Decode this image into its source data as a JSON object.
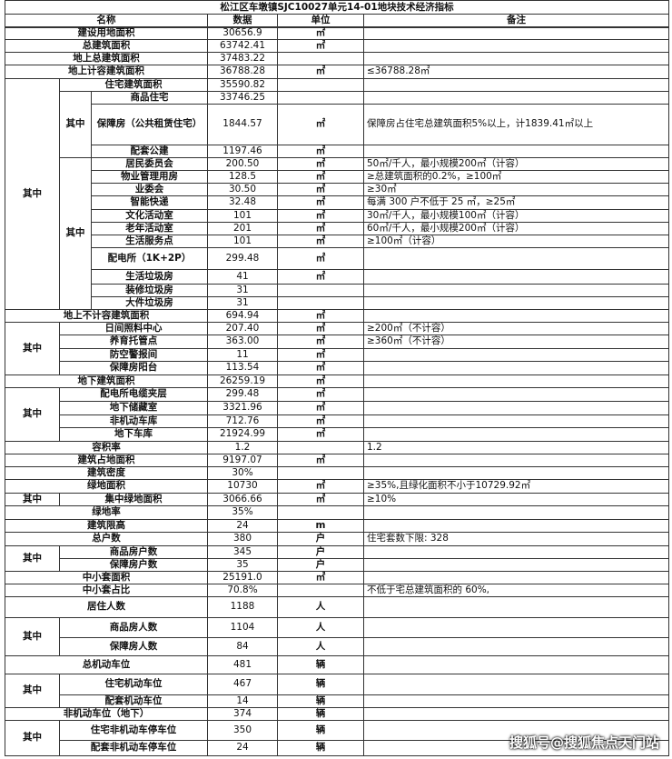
{
  "title": "松江区车墩镇SJC10027单元14-01地块技术经济指标",
  "header": {
    "name": "名称",
    "value": "数据",
    "unit": "单位",
    "note": "备注"
  },
  "rows": [
    {
      "name": "建设用地面积",
      "value": "30656.9",
      "unit": "㎡"
    },
    {
      "name": "总建筑面积",
      "value": "63742.41",
      "unit": "㎡"
    },
    {
      "name": "地上总建筑面积",
      "value": "37483.22"
    },
    {
      "name": "地上计容建筑面积",
      "value": "36788.28",
      "unit": "㎡",
      "note": "≤36788.28㎡"
    },
    {
      "name": "住宅建筑面积",
      "value": "35590.82"
    },
    {
      "name": "商品住宅",
      "value": "33746.25"
    },
    {
      "name": "保障房（公共租赁住宅）",
      "value": "1844.57",
      "unit": "㎡",
      "note": "保障房占住宅总建筑面积5%以上，计1839.41㎡以上"
    },
    {
      "name": "配套公建",
      "value": "1197.46",
      "unit": "㎡"
    },
    {
      "name": "居民委员会",
      "value": "200.50",
      "unit": "㎡",
      "note": "50㎡/千人，最小规模200㎡（计容）"
    },
    {
      "name": "物业管理用房",
      "value": "128.5",
      "unit": "㎡",
      "note": "≥总建筑面积的0.2%，≥100㎡"
    },
    {
      "name": "业委会",
      "value": "30.50",
      "unit": "㎡",
      "note": "≥30㎡"
    },
    {
      "name": "智能快递",
      "value": "32.48",
      "unit": "㎡",
      "note": "每满 300 户不低于 25 ㎡，≥25㎡"
    },
    {
      "name": "文化活动室",
      "value": "101",
      "unit": "㎡",
      "note": "30㎡/千人，最小规模100㎡（计容）"
    },
    {
      "name": "老年活动室",
      "value": "201",
      "unit": "㎡",
      "note": "60㎡/千人，最小规模200㎡（计容）"
    },
    {
      "name": "生活服务点",
      "value": "101",
      "unit": "㎡",
      "note": "≥100㎡（计容）"
    },
    {
      "name": "配电所（1K+2P）",
      "value": "299.48",
      "unit": "㎡"
    },
    {
      "name": "生活垃圾房",
      "value": "41",
      "unit": "㎡"
    },
    {
      "name": "装修垃圾房",
      "value": "31"
    },
    {
      "name": "大件垃圾房",
      "value": "31"
    },
    {
      "name": "地上不计容建筑面积",
      "value": "694.94",
      "unit": "㎡"
    },
    {
      "name": "日间照料中心",
      "value": "207.40",
      "unit": "㎡",
      "note": "≥200㎡（不计容）"
    },
    {
      "name": "养育托管点",
      "value": "363.00",
      "unit": "㎡",
      "note": "≥360㎡（不计容）"
    },
    {
      "name": "防空警报间",
      "value": "11",
      "unit": "㎡"
    },
    {
      "name": "保障房阳台",
      "value": "113.54",
      "unit": "㎡"
    },
    {
      "name": "地下建筑面积",
      "value": "26259.19",
      "unit": "㎡"
    },
    {
      "name": "配电所电缆夹层",
      "value": "299.48",
      "unit": "㎡"
    },
    {
      "name": "地下储藏室",
      "value": "3321.96",
      "unit": "㎡"
    },
    {
      "name": "非机动车库",
      "value": "712.76",
      "unit": "㎡"
    },
    {
      "name": "地下车库",
      "value": "21924.99",
      "unit": "㎡"
    },
    {
      "name": "容积率",
      "value": "1.2",
      "note": "1.2"
    },
    {
      "name": "建筑占地面积",
      "value": "9197.07",
      "unit": "㎡"
    },
    {
      "name": "建筑密度",
      "value": "30%"
    },
    {
      "name": "绿地面积",
      "value": "10730",
      "unit": "㎡",
      "note": "≥35%,且绿化面积不小于10729.92㎡"
    },
    {
      "name": "集中绿地面积",
      "value": "3066.66",
      "unit": "㎡",
      "note": "≥10%"
    },
    {
      "name": "绿地率",
      "value": "35%"
    },
    {
      "name": "建筑限高",
      "value": "24",
      "unit": "m"
    },
    {
      "name": "总户数",
      "value": "380",
      "unit": "户",
      "note": "住宅套数下限: 328"
    },
    {
      "name": "商品房户数",
      "value": "345",
      "unit": "户"
    },
    {
      "name": "保障房户数",
      "value": "35",
      "unit": "户"
    },
    {
      "name": "中小套面积",
      "value": "25191.0",
      "unit": "㎡"
    },
    {
      "name": "中小套占比",
      "value": "70.8%",
      "note": "不低于宅总建筑面积的 60%,"
    },
    {
      "name": "居住人数",
      "value": "1188",
      "unit": "人"
    },
    {
      "name": "商品房人数",
      "value": "1104",
      "unit": "人"
    },
    {
      "name": "保障房人数",
      "value": "84",
      "unit": "人"
    },
    {
      "name": "总机动车位",
      "value": "481",
      "unit": "辆"
    },
    {
      "name": "住宅机动车位",
      "value": "467",
      "unit": "辆"
    },
    {
      "name": "配套机动车位",
      "value": "14",
      "unit": "辆"
    },
    {
      "name": "非机动车位（地下）",
      "value": "374",
      "unit": "辆"
    },
    {
      "name": "住宅非机动车停车位",
      "value": "350",
      "unit": "辆"
    },
    {
      "name": "配套非机动车停车位",
      "value": "24",
      "unit": "辆"
    }
  ],
  "groups": [
    "其中",
    "其中",
    "其中",
    "其中",
    "其中",
    "其中",
    "其中",
    "其中",
    "其中",
    "其中"
  ],
  "watermark": "搜狐号@搜狐焦点天门站"
}
